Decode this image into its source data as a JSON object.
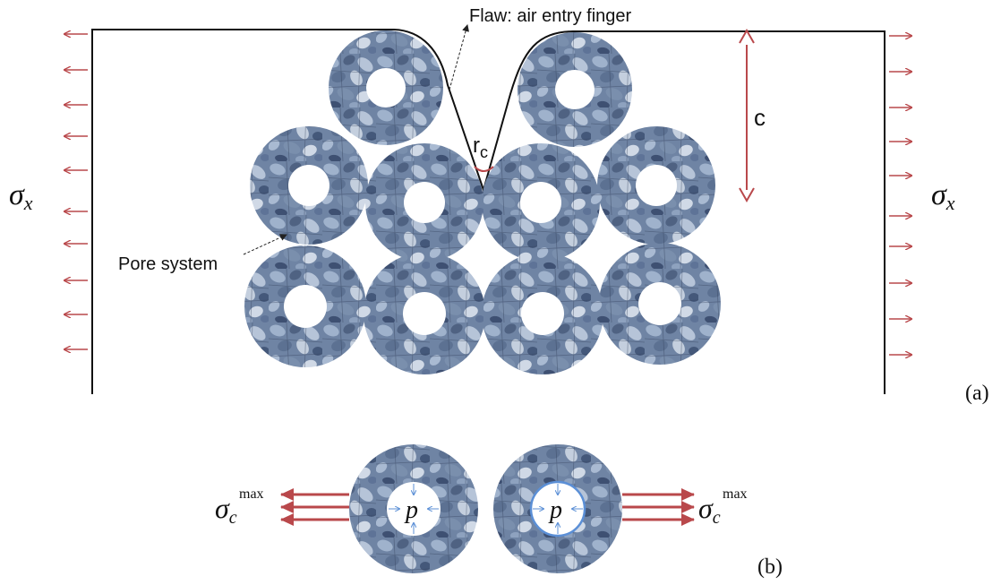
{
  "labels": {
    "flaw": "Flaw: air entry finger",
    "crack_depth": "c",
    "radius": "r",
    "radius_sub": "c",
    "pore_system": "Pore system",
    "sigma": "σ",
    "sigma_sub": "x",
    "sigma_c": "σ",
    "sigma_c_sub": "c",
    "sigma_c_sup": "max",
    "pressure": "p",
    "panel_a": "(a)",
    "panel_b": "(b)"
  },
  "colors": {
    "arrow_red": "#b9484b",
    "pressure_blue": "#5b8fd6",
    "outline": "#111111",
    "gravel_base": "#7e93b1"
  }
}
